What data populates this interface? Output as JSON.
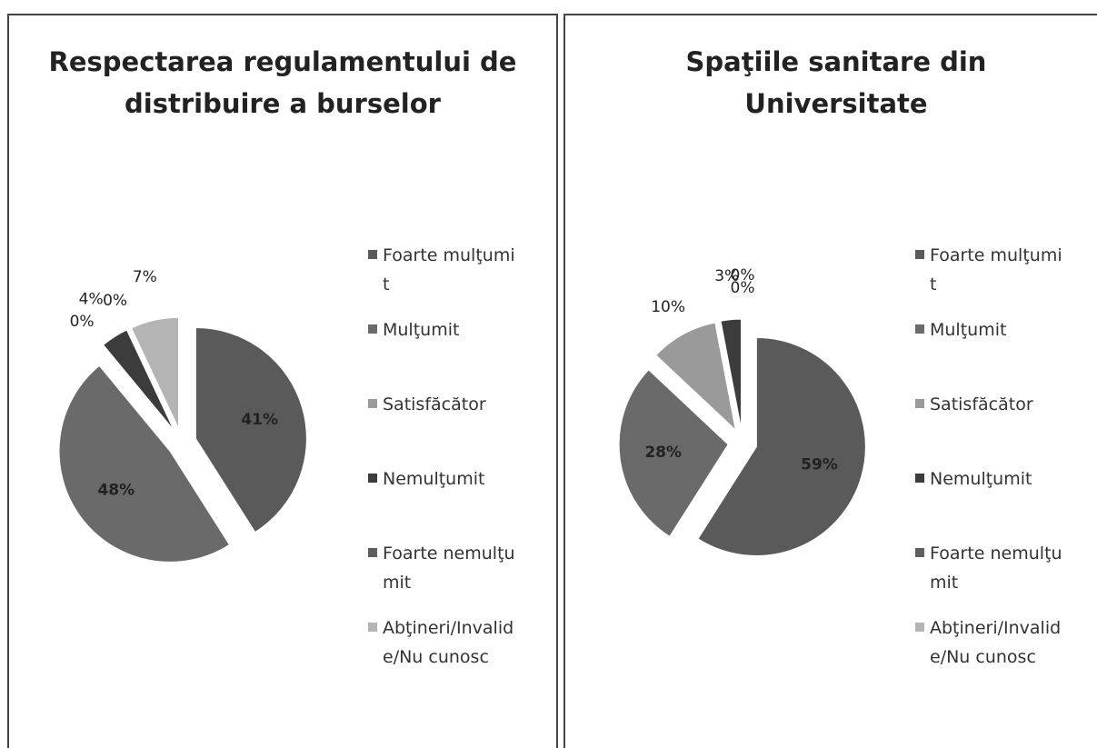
{
  "chart_data": [
    {
      "type": "pie",
      "title": "Respectarea regulamentului de distribuire a burselor",
      "categories": [
        "Foarte mulţumit",
        "Mulţumit",
        "Satisfăcător",
        "Nemulţumit",
        "Foarte nemulţumit",
        "Abţineri/Invalide/Nu cunosc"
      ],
      "values": [
        41,
        48,
        0,
        4,
        0,
        7
      ],
      "value_labels": [
        "41%",
        "48%",
        "0%",
        "4%",
        "0%",
        "7%"
      ],
      "colors": [
        "#5a5a5a",
        "#6a6a6a",
        "#9a9a9a",
        "#3c3c3c",
        "#5e5e5e",
        "#b4b4b4"
      ]
    },
    {
      "type": "pie",
      "title": "Spaţiile sanitare din Universitate",
      "categories": [
        "Foarte mulţumit",
        "Mulţumit",
        "Satisfăcător",
        "Nemulţumit",
        "Foarte nemulţumit",
        "Abţineri/Invalide/Nu cunosc"
      ],
      "values": [
        59,
        28,
        10,
        3,
        0,
        0
      ],
      "value_labels": [
        "59%",
        "28%",
        "10%",
        "3%",
        "0%",
        "0%"
      ],
      "colors": [
        "#5a5a5a",
        "#6a6a6a",
        "#9a9a9a",
        "#3c3c3c",
        "#5e5e5e",
        "#b4b4b4"
      ]
    }
  ]
}
